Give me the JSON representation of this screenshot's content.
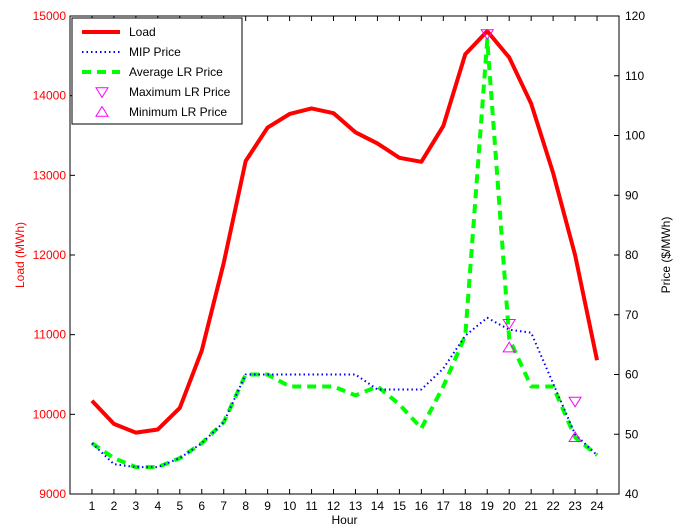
{
  "chart_data": {
    "type": "line",
    "title": "",
    "xlabel": "Hour",
    "ylabel_left": "Load (MWh)",
    "ylabel_right": "Price ($/MWh)",
    "x": [
      1,
      2,
      3,
      4,
      5,
      6,
      7,
      8,
      9,
      10,
      11,
      12,
      13,
      14,
      15,
      16,
      17,
      18,
      19,
      20,
      21,
      22,
      23,
      24
    ],
    "xlim": [
      0,
      25
    ],
    "ylim_left": [
      9000,
      15000
    ],
    "ylim_right": [
      40,
      120
    ],
    "yticks_left": [
      9000,
      10000,
      11000,
      12000,
      13000,
      14000,
      15000
    ],
    "yticks_right": [
      40,
      50,
      60,
      70,
      80,
      90,
      100,
      110,
      120
    ],
    "grid": false,
    "legend_position": "top-left",
    "colors": {
      "load": "#ff0000",
      "mip": "#0000ff",
      "avg_lr": "#00ff00",
      "markers": "#ff00ff",
      "left_axis": "#ff0000",
      "right_axis": "#000000"
    },
    "series": [
      {
        "name": "Load",
        "axis": "left",
        "style": "solid",
        "values": [
          10170,
          9880,
          9770,
          9810,
          10080,
          10800,
          11900,
          13180,
          13600,
          13770,
          13840,
          13780,
          13540,
          13400,
          13220,
          13170,
          13620,
          14520,
          14810,
          14480,
          13900,
          13030,
          12000,
          10680
        ]
      },
      {
        "name": "MIP Price",
        "axis": "right",
        "style": "dotted",
        "values": [
          48.5,
          45.0,
          44.5,
          44.5,
          46.0,
          48.5,
          52.0,
          60.0,
          60.0,
          60.0,
          60.0,
          60.0,
          60.0,
          57.5,
          57.5,
          57.5,
          61.0,
          66.5,
          69.5,
          67.5,
          67.0,
          58.5,
          50.0,
          46.5
        ]
      },
      {
        "name": "Average LR Price",
        "axis": "right",
        "style": "dashed",
        "values": [
          48.5,
          46.0,
          44.5,
          44.5,
          46.0,
          48.5,
          52.0,
          60.0,
          60.0,
          58.0,
          58.0,
          58.0,
          56.5,
          58.0,
          55.0,
          51.0,
          58.0,
          66.5,
          116.0,
          66.0,
          58.0,
          58.0,
          49.5,
          46.5
        ]
      },
      {
        "name": "Maximum LR Price",
        "axis": "right",
        "style": "marker-triangle-down",
        "points": [
          [
            19,
            117
          ],
          [
            20,
            68.5
          ],
          [
            23,
            55.5
          ]
        ]
      },
      {
        "name": "Minimum LR Price",
        "axis": "right",
        "style": "marker-triangle-up",
        "points": [
          [
            20,
            64.5
          ],
          [
            23,
            49.5
          ]
        ]
      }
    ]
  }
}
